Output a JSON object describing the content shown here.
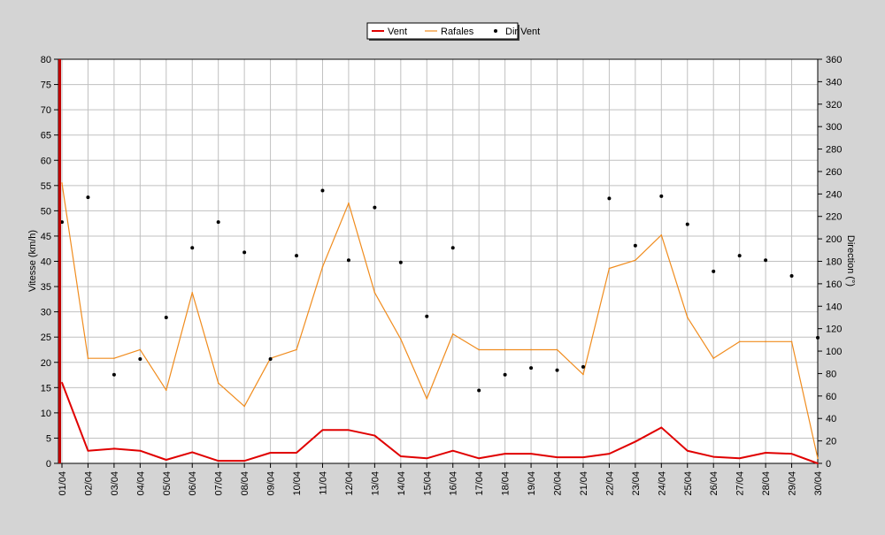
{
  "chart_data": {
    "type": "line",
    "title": "",
    "ylabel": "Vitesse (km/h)",
    "y2label": "Direction (°)",
    "ylim": [
      0,
      80
    ],
    "y2lim": [
      0,
      360
    ],
    "yticks": [
      0,
      5,
      10,
      15,
      20,
      25,
      30,
      35,
      40,
      45,
      50,
      55,
      60,
      65,
      70,
      75,
      80
    ],
    "y2ticks": [
      0,
      20,
      40,
      60,
      80,
      100,
      120,
      140,
      160,
      180,
      200,
      220,
      240,
      260,
      280,
      300,
      320,
      340,
      360
    ],
    "grid": true,
    "legend_position": "top-center",
    "categories": [
      "01/04",
      "02/04",
      "03/04",
      "04/04",
      "05/04",
      "06/04",
      "07/04",
      "08/04",
      "09/04",
      "10/04",
      "11/04",
      "12/04",
      "13/04",
      "14/04",
      "15/04",
      "16/04",
      "17/04",
      "18/04",
      "19/04",
      "20/04",
      "21/04",
      "22/04",
      "23/04",
      "24/04",
      "25/04",
      "26/04",
      "27/04",
      "28/04",
      "29/04",
      "30/04"
    ],
    "series": [
      {
        "name": "Vent",
        "kind": "line",
        "axis": "left",
        "color": "#e00000",
        "values": [
          16,
          2.5,
          2.9,
          2.5,
          0.7,
          2.2,
          0.5,
          0.5,
          2.1,
          2.1,
          6.6,
          6.6,
          5.5,
          1.4,
          1.0,
          2.5,
          1.0,
          1.9,
          1.9,
          1.2,
          1.2,
          1.9,
          4.3,
          7.1,
          2.5,
          1.3,
          1.0,
          2.1,
          1.9,
          0.0
        ]
      },
      {
        "name": "Rafales",
        "kind": "line",
        "axis": "left",
        "color": "#f08c1e",
        "values": [
          55.5,
          20.8,
          20.8,
          22.5,
          14.5,
          33.8,
          15.9,
          11.3,
          20.8,
          22.5,
          38.9,
          51.5,
          33.8,
          24.6,
          12.8,
          25.6,
          22.5,
          22.5,
          22.5,
          22.5,
          17.6,
          38.6,
          40.2,
          45.2,
          28.9,
          20.8,
          24.1,
          24.1,
          24.1,
          1.0
        ]
      },
      {
        "name": "Dir Vent",
        "kind": "scatter",
        "axis": "right",
        "color": "#000000",
        "values": [
          215,
          237,
          79,
          93,
          130,
          192,
          215,
          188,
          93,
          185,
          243,
          181,
          228,
          179,
          131,
          192,
          65,
          79,
          85,
          83,
          86,
          236,
          194,
          238,
          213,
          171,
          185,
          181,
          167,
          112
        ]
      }
    ]
  }
}
